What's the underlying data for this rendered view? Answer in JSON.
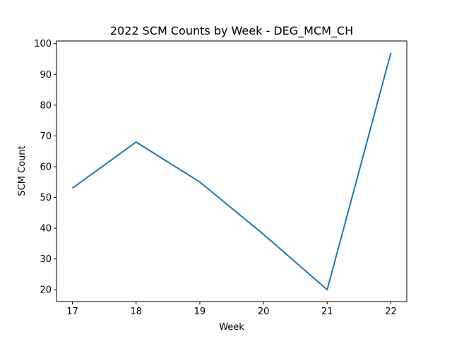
{
  "chart_data": {
    "type": "line",
    "title": "2022 SCM Counts by Week - DEG_MCM_CH",
    "xlabel": "Week",
    "ylabel": "SCM Count",
    "x": [
      17,
      18,
      19,
      20,
      21,
      22
    ],
    "x_tick_labels": [
      "17",
      "18",
      "19",
      "20",
      "21",
      "22"
    ],
    "y_tick_values": [
      20,
      30,
      40,
      50,
      60,
      70,
      80,
      90,
      100
    ],
    "y_tick_labels": [
      "20",
      "30",
      "40",
      "50",
      "60",
      "70",
      "80",
      "90",
      "100"
    ],
    "xlim": [
      16.75,
      22.25
    ],
    "ylim": [
      16.15,
      100.85
    ],
    "grid": false,
    "series": [
      {
        "values": [
          53,
          68,
          55,
          38,
          20,
          97
        ],
        "color": "#1f77b4"
      }
    ]
  }
}
